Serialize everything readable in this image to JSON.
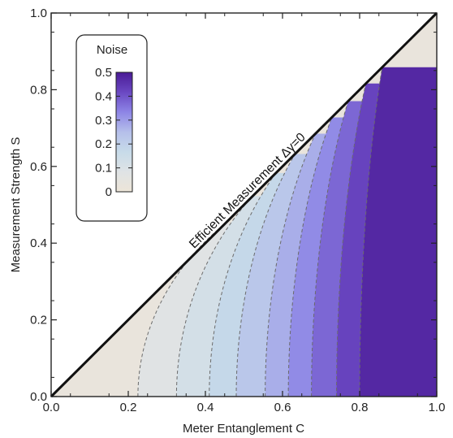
{
  "chart_data": {
    "type": "heatmap",
    "subtype": "filled-contour",
    "title": "",
    "xlabel": "Meter Entanglement C",
    "ylabel": "Measurement Strength S",
    "xlim": [
      0.0,
      1.0
    ],
    "ylim": [
      0.0,
      1.0
    ],
    "x_ticks": [
      "0.0",
      "0.2",
      "0.4",
      "0.6",
      "0.8",
      "1.0"
    ],
    "y_ticks": [
      "0.0",
      "0.2",
      "0.4",
      "0.6",
      "0.8",
      "1.0"
    ],
    "grid": false,
    "annotation": "Efficient Measurement Δγ=0",
    "boundary_line": {
      "from": [
        0.0,
        0.0
      ],
      "to": [
        1.0,
        1.0
      ]
    },
    "region": "below the line S = C",
    "colorbar": {
      "title": "Noise",
      "range": [
        0,
        0.5
      ],
      "ticks": [
        "0",
        "0.1",
        "0.2",
        "0.3",
        "0.4",
        "0.5"
      ],
      "colors": [
        "#ede5d8",
        "#dfe3e5",
        "#c7dbe9",
        "#b5bfea",
        "#8d85e6",
        "#6a48c2",
        "#4a1a96"
      ],
      "placement": "top-left inside plot"
    },
    "contour_levels": [
      0.05,
      0.1,
      0.15,
      0.2,
      0.25,
      0.3,
      0.35,
      0.4,
      0.45
    ],
    "contour_x_intercepts_at_S0": [
      0.225,
      0.325,
      0.41,
      0.48,
      0.555,
      0.615,
      0.675,
      0.74,
      0.8
    ]
  }
}
